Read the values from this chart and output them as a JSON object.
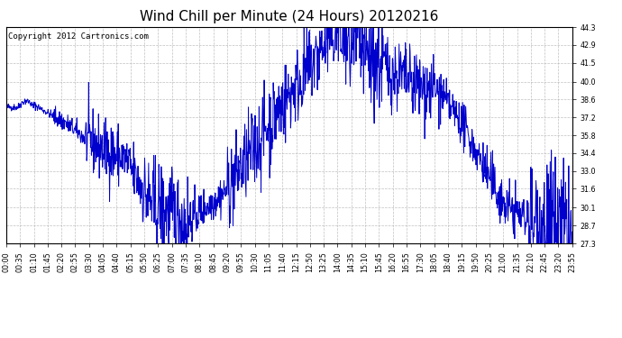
{
  "title": "Wind Chill per Minute (24 Hours) 20120216",
  "copyright_text": "Copyright 2012 Cartronics.com",
  "line_color": "#0000CC",
  "background_color": "#ffffff",
  "plot_bg_color": "#ffffff",
  "grid_color": "#b0b0b0",
  "ylim": [
    27.3,
    44.3
  ],
  "yticks": [
    27.3,
    28.7,
    30.1,
    31.6,
    33.0,
    34.4,
    35.8,
    37.2,
    38.6,
    40.0,
    41.5,
    42.9,
    44.3
  ],
  "xlim_max": 1435,
  "xtick_interval_minutes": 35,
  "title_fontsize": 11,
  "copyright_fontsize": 6.5,
  "tick_fontsize": 5.8,
  "line_width": 0.7,
  "seed": 42,
  "figsize": [
    6.9,
    3.75
  ],
  "dpi": 100
}
